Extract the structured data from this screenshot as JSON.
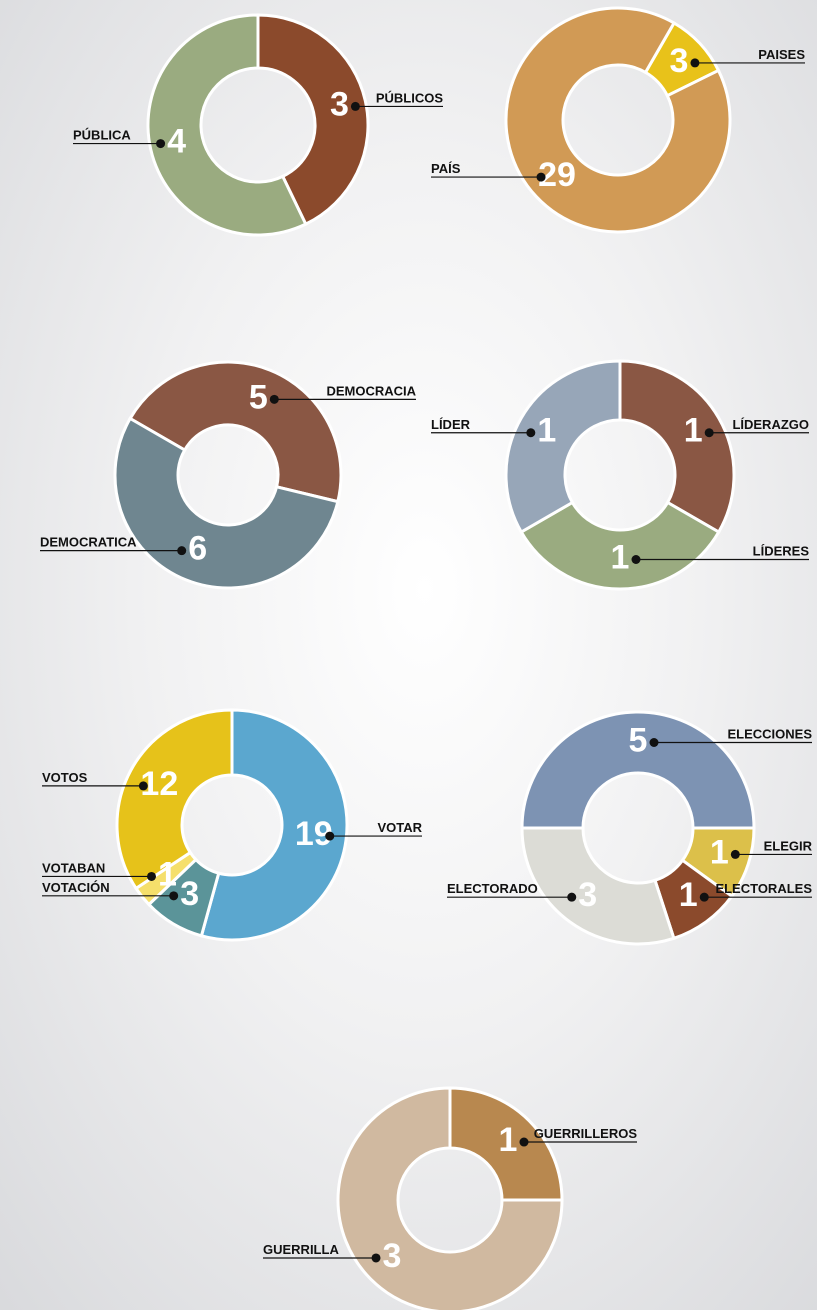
{
  "chart_data": [
    {
      "type": "donut",
      "categories": [
        "PÚBLICOS",
        "PÚBLICA"
      ],
      "values": [
        3,
        4
      ],
      "colors": [
        "#8b4a2c",
        "#9aab80"
      ]
    },
    {
      "type": "donut",
      "categories": [
        "PAISES",
        "PAÍS"
      ],
      "values": [
        3,
        29
      ],
      "colors": [
        "#e8c21a",
        "#d19a55"
      ]
    },
    {
      "type": "donut",
      "categories": [
        "DEMOCRACIA",
        "DEMOCRATICA"
      ],
      "values": [
        5,
        6
      ],
      "colors": [
        "#8a5744",
        "#6f8690"
      ]
    },
    {
      "type": "donut",
      "categories": [
        "LÍDERAZGO",
        "LÍDERES",
        "LÍDER"
      ],
      "values": [
        1,
        1,
        1
      ],
      "colors": [
        "#8a5744",
        "#9aab80",
        "#97a6b8"
      ]
    },
    {
      "type": "donut",
      "categories": [
        "VOTAR",
        "VOTACIÓN",
        "VOTABAN",
        "VOTOS"
      ],
      "values": [
        19,
        3,
        1,
        12
      ],
      "colors": [
        "#5ba7cf",
        "#5b9499",
        "#f5df6b",
        "#e6c21a"
      ]
    },
    {
      "type": "donut",
      "categories": [
        "ELECCIONES",
        "ELEGIR",
        "ELECTORALES",
        "ELECTORADO"
      ],
      "values": [
        5,
        1,
        1,
        3
      ],
      "colors": [
        "#7d93b3",
        "#dcc04a",
        "#8b4a2c",
        "#dcdcd6"
      ]
    },
    {
      "type": "donut",
      "categories": [
        "GUERRILLA",
        "GUERRILLEROS"
      ],
      "values": [
        3,
        1
      ],
      "colors": [
        "#d0b9a0",
        "#b8884f"
      ]
    }
  ]
}
